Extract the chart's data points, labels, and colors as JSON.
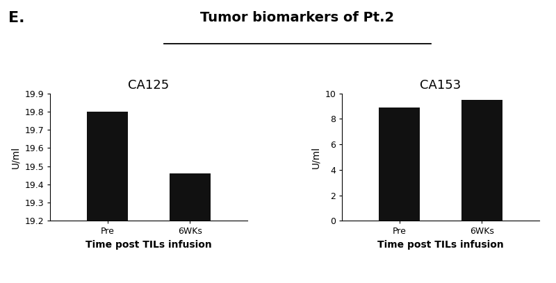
{
  "title": "Tumor biomarkers of Pt.2",
  "panel_label": "E.",
  "subplot1": {
    "title": "CA125",
    "categories": [
      "Pre",
      "6WKs"
    ],
    "values": [
      19.8,
      19.46
    ],
    "ylabel": "U/ml",
    "xlabel": "Time post TILs infusion",
    "ylim": [
      19.2,
      19.9
    ],
    "yticks": [
      19.2,
      19.3,
      19.4,
      19.5,
      19.6,
      19.7,
      19.8,
      19.9
    ],
    "ytick_labels": [
      "19.2",
      "19.3",
      "19.4",
      "19.5",
      "19.6",
      "19.7",
      "19.8",
      "19.9"
    ],
    "bar_color": "#111111",
    "bar_width": 0.5
  },
  "subplot2": {
    "title": "CA153",
    "categories": [
      "Pre",
      "6WKs"
    ],
    "values": [
      8.9,
      9.5
    ],
    "ylabel": "U/ml",
    "xlabel": "Time post TILs infusion",
    "ylim": [
      0,
      10
    ],
    "yticks": [
      0,
      2,
      4,
      6,
      8,
      10
    ],
    "ytick_labels": [
      "0",
      "2",
      "4",
      "6",
      "8",
      "10"
    ],
    "bar_color": "#111111",
    "bar_width": 0.5
  },
  "background_color": "#ffffff",
  "title_fontsize": 14,
  "subtitle_fontsize": 13,
  "axis_label_fontsize": 10,
  "tick_fontsize": 9,
  "panel_label_fontsize": 16
}
